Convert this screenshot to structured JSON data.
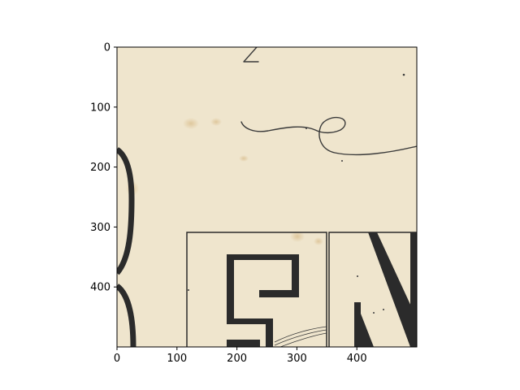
{
  "chart_data": {
    "type": "heatmap",
    "title": "",
    "xlabel": "",
    "ylabel": "",
    "xlim": [
      0,
      500
    ],
    "ylim": [
      500,
      0
    ],
    "y_inverted": true,
    "xticks": [
      0,
      100,
      200,
      300,
      400
    ],
    "yticks": [
      0,
      100,
      200,
      300,
      400
    ],
    "xtick_labels": [
      "0",
      "100",
      "200",
      "300",
      "400"
    ],
    "ytick_labels": [
      "0",
      "100",
      "200",
      "300",
      "400"
    ],
    "grid": false,
    "legend": "none",
    "image": {
      "description_tag": "scanned-engraving-crop",
      "background_color": "#efe5cd",
      "ink_color": "#2b2b2b",
      "stain_color": "#dcc39a"
    }
  }
}
